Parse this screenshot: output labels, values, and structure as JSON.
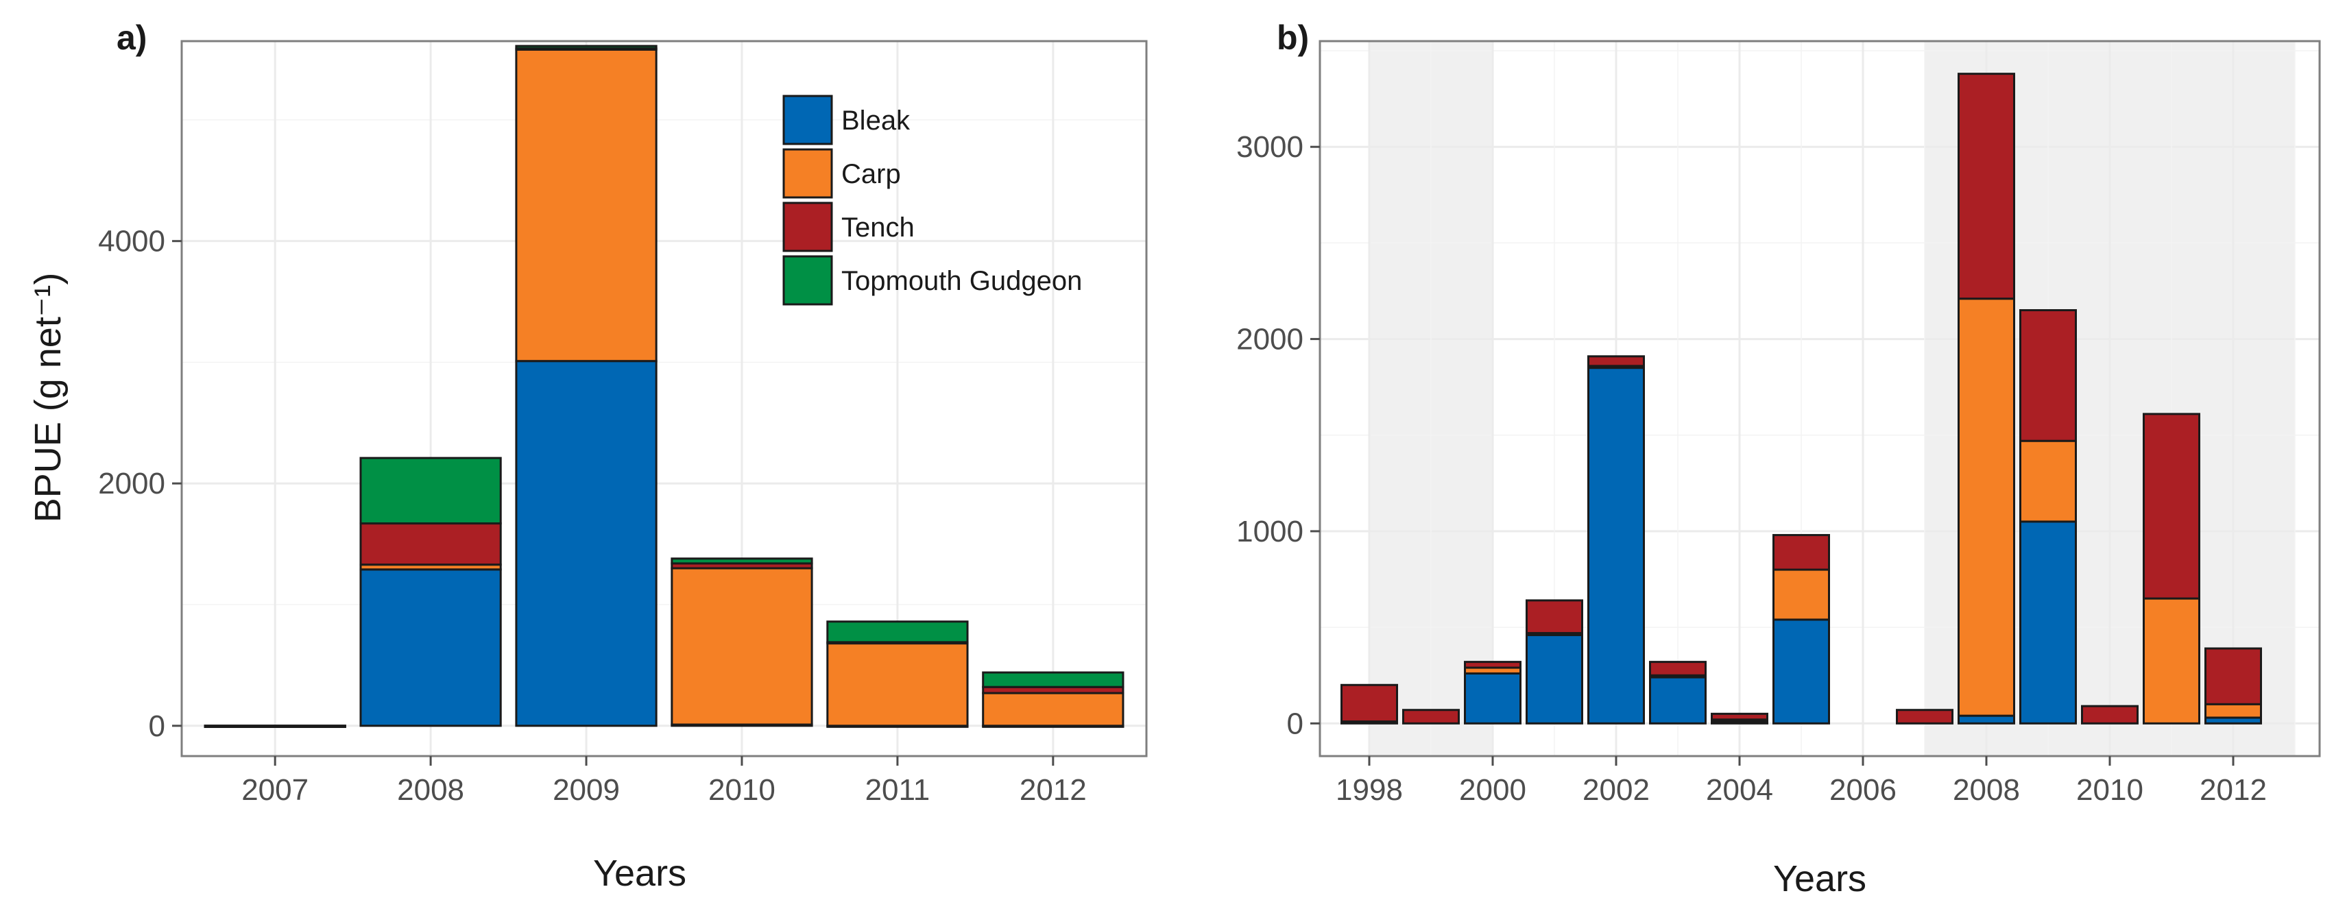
{
  "colors": {
    "Bleak": "#0067b4",
    "Carp": "#f58025",
    "Tench": "#ab1f24",
    "Topmouth Gudgeon": "#009045"
  },
  "chart_data": [
    {
      "type": "bar",
      "stacked": true,
      "panel_label": "a)",
      "xlabel": "Years",
      "ylabel": "BPUE (g net⁻¹)",
      "ylim": [
        -250,
        5650
      ],
      "yticks": [
        0,
        2000,
        4000
      ],
      "categories": [
        "2007",
        "2008",
        "2009",
        "2010",
        "2011",
        "2012"
      ],
      "series": [
        {
          "name": "Bleak",
          "values": [
            0,
            1290,
            3010,
            10,
            0,
            0
          ]
        },
        {
          "name": "Carp",
          "values": [
            0,
            40,
            2570,
            1290,
            680,
            270
          ]
        },
        {
          "name": "Tench",
          "values": [
            0,
            340,
            10,
            40,
            10,
            50
          ]
        },
        {
          "name": "Topmouth Gudgeon",
          "values": [
            0,
            540,
            20,
            40,
            170,
            120
          ]
        }
      ],
      "legend": {
        "position": "top-right",
        "entries": [
          "Bleak",
          "Carp",
          "Tench",
          "Topmouth Gudgeon"
        ]
      }
    },
    {
      "type": "bar",
      "stacked": true,
      "panel_label": "b)",
      "xlabel": "Years",
      "ylabel": "",
      "ylim": [
        -170,
        3550
      ],
      "yticks": [
        0,
        1000,
        2000,
        3000
      ],
      "xlim": [
        1997.2,
        2013.4
      ],
      "xticks": [
        1998,
        2000,
        2002,
        2004,
        2006,
        2008,
        2010,
        2012
      ],
      "shaded_ranges": [
        [
          1998,
          2000
        ],
        [
          2007,
          2013
        ]
      ],
      "years": [
        1998,
        1999,
        2000,
        2001,
        2002,
        2003,
        2004,
        2005,
        2006,
        2007,
        2008,
        2009,
        2010,
        2011,
        2012
      ],
      "series": [
        {
          "name": "Bleak",
          "values": [
            10,
            0,
            260,
            460,
            1850,
            240,
            10,
            540,
            0,
            0,
            40,
            1050,
            0,
            0,
            30
          ]
        },
        {
          "name": "Carp",
          "values": [
            0,
            0,
            30,
            10,
            10,
            10,
            10,
            260,
            0,
            0,
            2170,
            420,
            0,
            650,
            70
          ]
        },
        {
          "name": "Tench",
          "values": [
            190,
            70,
            30,
            170,
            50,
            70,
            30,
            180,
            0,
            70,
            1170,
            680,
            90,
            960,
            290
          ]
        },
        {
          "name": "Topmouth Gudgeon",
          "values": [
            0,
            0,
            0,
            0,
            0,
            0,
            0,
            0,
            0,
            0,
            0,
            0,
            0,
            0,
            0
          ]
        }
      ]
    }
  ]
}
